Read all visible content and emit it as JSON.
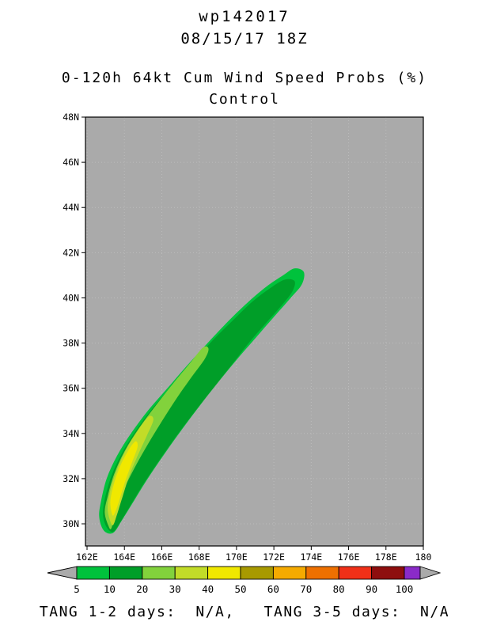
{
  "header": {
    "storm_id": "wp142017",
    "datetime": "08/15/17 18Z",
    "product_title": "0-120h 64kt Cum Wind Speed Probs (%)",
    "model": "Control"
  },
  "footer": {
    "tang_text": "TANG 1-2 days:  N/A,   TANG 3-5 days:  N/A"
  },
  "chart_data": {
    "type": "filled-contour-map",
    "title": "0-120h 64kt Cum Wind Speed Probs (%)",
    "subtitle": "Control",
    "storm_id": "wp142017",
    "init_time": "08/15/17 18Z",
    "background_color": "#aaaaaa",
    "x_axis": {
      "range": [
        161.915,
        180
      ],
      "tick_values": [
        162,
        164,
        166,
        168,
        170,
        172,
        174,
        176,
        178,
        180
      ],
      "tick_labels": [
        "162E",
        "164E",
        "166E",
        "168E",
        "170E",
        "172E",
        "174E",
        "176E",
        "178E",
        "180"
      ]
    },
    "y_axis": {
      "range": [
        29.02,
        48
      ],
      "tick_values": [
        30,
        32,
        34,
        36,
        38,
        40,
        42,
        44,
        46,
        48
      ],
      "tick_labels": [
        "30N",
        "32N",
        "34N",
        "36N",
        "38N",
        "40N",
        "42N",
        "44N",
        "46N",
        "48N"
      ]
    },
    "colorbar": {
      "levels": [
        5,
        10,
        20,
        30,
        40,
        50,
        60,
        70,
        80,
        90,
        100
      ],
      "segment_colors": [
        "#00c23c",
        "#009e28",
        "#82d23c",
        "#c2dc28",
        "#f0e800",
        "#a89a00",
        "#f5aa00",
        "#ee7000",
        "#f03018",
        "#8e0e0e",
        "#8a2bc8"
      ],
      "arrow_color": "#aaaaaa"
    },
    "contours": [
      {
        "level": 5,
        "color": "#00c23c",
        "points": [
          [
            162.9,
            29.7
          ],
          [
            162.65,
            30.3
          ],
          [
            162.75,
            31.0
          ],
          [
            163.05,
            32.0
          ],
          [
            163.6,
            33.0
          ],
          [
            164.35,
            34.0
          ],
          [
            165.25,
            35.0
          ],
          [
            166.3,
            36.0
          ],
          [
            167.35,
            37.0
          ],
          [
            168.45,
            38.0
          ],
          [
            169.6,
            39.0
          ],
          [
            170.6,
            39.8
          ],
          [
            171.6,
            40.5
          ],
          [
            172.5,
            41.0
          ],
          [
            173.1,
            41.3
          ],
          [
            173.6,
            41.15
          ],
          [
            173.5,
            40.6
          ],
          [
            172.9,
            40.0
          ],
          [
            172.05,
            39.2
          ],
          [
            171.1,
            38.3
          ],
          [
            170.15,
            37.4
          ],
          [
            169.15,
            36.4
          ],
          [
            168.1,
            35.3
          ],
          [
            167.1,
            34.2
          ],
          [
            166.15,
            33.1
          ],
          [
            165.25,
            32.0
          ],
          [
            164.5,
            31.0
          ],
          [
            163.9,
            30.2
          ],
          [
            163.4,
            29.6
          ]
        ]
      },
      {
        "level": 10,
        "color": "#009e28",
        "points": [
          [
            163.05,
            29.85
          ],
          [
            162.85,
            30.4
          ],
          [
            162.95,
            31.1
          ],
          [
            163.3,
            32.1
          ],
          [
            163.85,
            33.1
          ],
          [
            164.6,
            34.1
          ],
          [
            165.5,
            35.1
          ],
          [
            166.55,
            36.1
          ],
          [
            167.6,
            37.1
          ],
          [
            168.7,
            38.1
          ],
          [
            169.8,
            39.0
          ],
          [
            170.8,
            39.8
          ],
          [
            171.75,
            40.4
          ],
          [
            172.55,
            40.8
          ],
          [
            173.1,
            40.75
          ],
          [
            173.0,
            40.3
          ],
          [
            172.45,
            39.7
          ],
          [
            171.65,
            38.95
          ],
          [
            170.75,
            38.1
          ],
          [
            169.85,
            37.15
          ],
          [
            168.85,
            36.1
          ],
          [
            167.8,
            35.0
          ],
          [
            166.8,
            33.9
          ],
          [
            165.9,
            32.85
          ],
          [
            165.05,
            31.8
          ],
          [
            164.35,
            30.85
          ],
          [
            163.8,
            30.1
          ],
          [
            163.4,
            29.65
          ]
        ]
      },
      {
        "level": 20,
        "color": "#82d23c",
        "points": [
          [
            163.15,
            29.9
          ],
          [
            162.95,
            30.5
          ],
          [
            163.1,
            31.2
          ],
          [
            163.45,
            32.2
          ],
          [
            164.0,
            33.2
          ],
          [
            164.75,
            34.2
          ],
          [
            165.65,
            35.2
          ],
          [
            166.6,
            36.2
          ],
          [
            167.5,
            37.1
          ],
          [
            168.2,
            37.8
          ],
          [
            168.5,
            37.75
          ],
          [
            168.3,
            37.3
          ],
          [
            167.6,
            36.5
          ],
          [
            166.75,
            35.5
          ],
          [
            165.9,
            34.4
          ],
          [
            165.1,
            33.3
          ],
          [
            164.4,
            32.25
          ],
          [
            163.85,
            31.3
          ],
          [
            163.5,
            30.45
          ],
          [
            163.3,
            29.8
          ]
        ]
      },
      {
        "level": 30,
        "color": "#c2dc28",
        "points": [
          [
            163.25,
            30.1
          ],
          [
            163.1,
            30.7
          ],
          [
            163.25,
            31.5
          ],
          [
            163.6,
            32.4
          ],
          [
            164.1,
            33.3
          ],
          [
            164.7,
            34.1
          ],
          [
            165.3,
            34.75
          ],
          [
            165.55,
            34.6
          ],
          [
            165.2,
            33.9
          ],
          [
            164.7,
            33.0
          ],
          [
            164.25,
            32.1
          ],
          [
            163.9,
            31.2
          ],
          [
            163.6,
            30.4
          ],
          [
            163.4,
            29.95
          ]
        ]
      },
      {
        "level": 40,
        "color": "#f0e800",
        "points": [
          [
            163.35,
            30.4
          ],
          [
            163.25,
            31.0
          ],
          [
            163.45,
            31.8
          ],
          [
            163.8,
            32.6
          ],
          [
            164.25,
            33.3
          ],
          [
            164.6,
            33.65
          ],
          [
            164.7,
            33.4
          ],
          [
            164.4,
            32.7
          ],
          [
            164.05,
            31.9
          ],
          [
            163.75,
            31.1
          ],
          [
            163.5,
            30.5
          ]
        ]
      }
    ]
  }
}
